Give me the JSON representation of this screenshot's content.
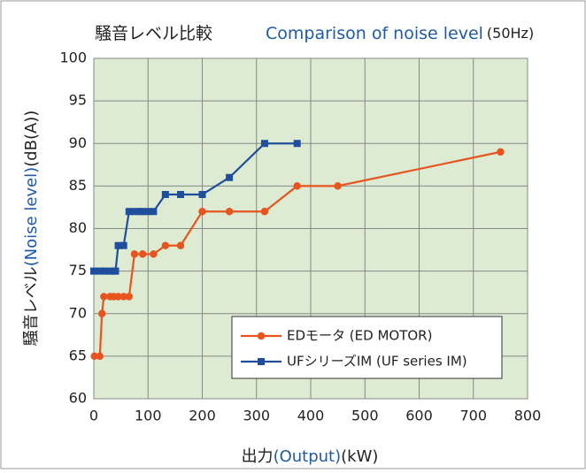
{
  "chart_data": {
    "type": "line",
    "title": [
      "騒音レベル比較",
      "Comparison of noise level",
      "(50Hz)"
    ],
    "x_label": [
      "出力",
      "(Output)",
      "(kW)"
    ],
    "y_label": [
      "騒音レベル",
      "(Noise level)",
      "(dB(A))"
    ],
    "xlim": [
      0,
      800
    ],
    "xticks": [
      0,
      100,
      200,
      300,
      400,
      500,
      600,
      700,
      800
    ],
    "ylim": [
      60,
      100
    ],
    "yticks": [
      60,
      65,
      70,
      75,
      80,
      85,
      90,
      95,
      100
    ],
    "grid": true,
    "series": [
      {
        "name": "EDモータ (ED MOTOR)",
        "color": "#e8541e",
        "marker": "circle",
        "x": [
          1,
          11,
          15,
          18.5,
          30,
          37,
          45,
          55,
          65,
          75,
          90,
          110,
          132,
          160,
          200,
          250,
          315,
          375,
          450,
          750
        ],
        "values": [
          65,
          65,
          70,
          72,
          72,
          72,
          72,
          72,
          72,
          77,
          77,
          77,
          78,
          78,
          82,
          82,
          82,
          85,
          85,
          89
        ]
      },
      {
        "name": "UFシリーズIM (UF series IM)",
        "color": "#1f4e9c",
        "marker": "square",
        "x": [
          0,
          11,
          18.5,
          30,
          37,
          40,
          45,
          55,
          65,
          75,
          85,
          90,
          100,
          110,
          132,
          160,
          200,
          250,
          315,
          375
        ],
        "values": [
          75,
          75,
          75,
          75,
          75,
          75,
          78,
          78,
          82,
          82,
          82,
          82,
          82,
          82,
          84,
          84,
          84,
          86,
          90,
          90
        ]
      }
    ]
  }
}
